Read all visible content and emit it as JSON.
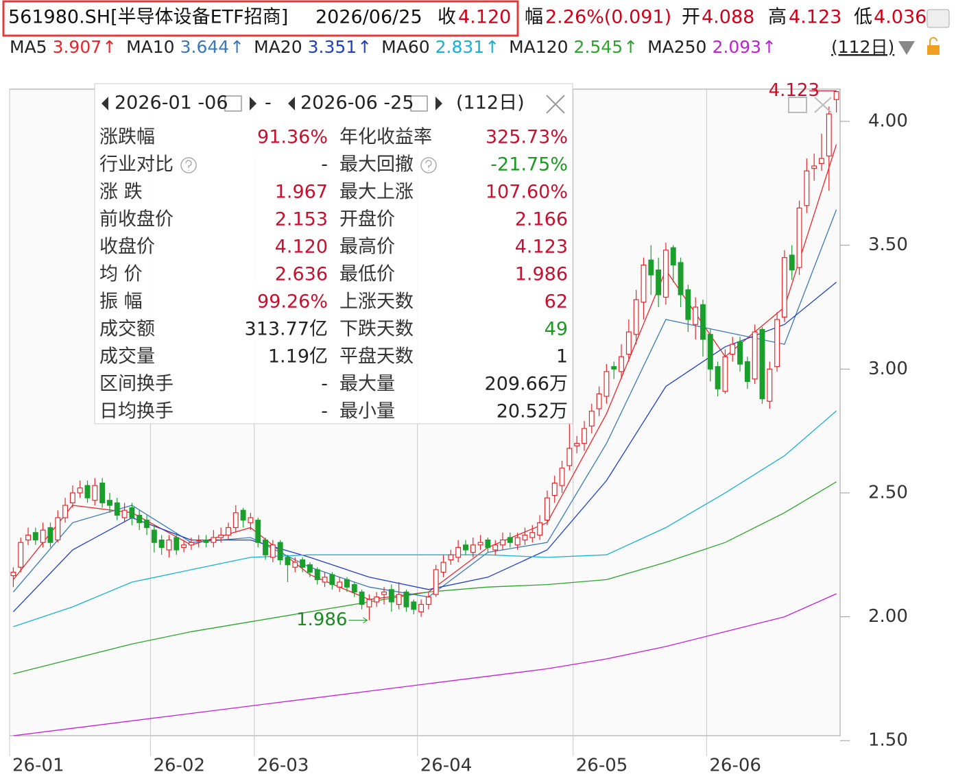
{
  "header": {
    "symbol": "561980.SH[半导体设备ETF招商]",
    "date": "2026/06/25",
    "close_label": "收",
    "close": "4.120",
    "change_label": "幅",
    "change": "2.26%(0.091)",
    "open_label": "开",
    "high_label": "高",
    "low_label": "低"
  },
  "period": "(112日)",
  "chart_data": {
    "type": "candlestick",
    "open": [
      2.166,
      2.2,
      2.31,
      2.34,
      2.3,
      2.36,
      2.31,
      2.4,
      2.46,
      2.5,
      2.53,
      2.47,
      2.54,
      2.47,
      2.46,
      2.4,
      2.44,
      2.41,
      2.39,
      2.35,
      2.31,
      2.27,
      2.32,
      2.28,
      2.29,
      2.31,
      2.31,
      2.3,
      2.32,
      2.33,
      2.36,
      2.43,
      2.38,
      2.39,
      2.31,
      2.24,
      2.3,
      2.24,
      2.2,
      2.23,
      2.21,
      2.19,
      2.14,
      2.17,
      2.12,
      2.15,
      2.13,
      2.1,
      2.04,
      2.06,
      2.09,
      2.11,
      2.05,
      2.1,
      2.06,
      2.02,
      2.05,
      2.09,
      2.18,
      2.23,
      2.24,
      2.29,
      2.26,
      2.29,
      2.31,
      2.27,
      2.29,
      2.32,
      2.29,
      2.31,
      2.32,
      2.33,
      2.39,
      2.49,
      2.53,
      2.61,
      2.69,
      2.7,
      2.77,
      2.84,
      2.89,
      3.01,
      2.99,
      3.06,
      3.14,
      3.27,
      3.44,
      3.4,
      3.29,
      3.49,
      3.43,
      3.32,
      3.18,
      3.26,
      3.14,
      3.01,
      2.91,
      3.06,
      3.11,
      3.03,
      2.96,
      3.16,
      2.87,
      3.01,
      3.21,
      3.46,
      3.41,
      3.66,
      3.81,
      3.83,
      3.86,
      4.088
    ],
    "high": [
      2.2,
      2.32,
      2.36,
      2.36,
      2.38,
      2.38,
      2.43,
      2.48,
      2.53,
      2.55,
      2.55,
      2.56,
      2.56,
      2.5,
      2.48,
      2.46,
      2.46,
      2.43,
      2.41,
      2.37,
      2.33,
      2.33,
      2.34,
      2.31,
      2.32,
      2.33,
      2.33,
      2.35,
      2.36,
      2.38,
      2.45,
      2.44,
      2.42,
      2.4,
      2.32,
      2.31,
      2.31,
      2.25,
      2.24,
      2.24,
      2.22,
      2.2,
      2.18,
      2.18,
      2.16,
      2.16,
      2.14,
      2.11,
      2.09,
      2.1,
      2.12,
      2.13,
      2.14,
      2.11,
      2.07,
      2.07,
      2.1,
      2.21,
      2.25,
      2.27,
      2.31,
      2.31,
      2.32,
      2.33,
      2.32,
      2.31,
      2.34,
      2.34,
      2.34,
      2.36,
      2.37,
      2.41,
      2.51,
      2.57,
      2.63,
      2.84,
      2.73,
      2.79,
      2.86,
      2.93,
      3.02,
      3.03,
      3.1,
      3.2,
      3.32,
      3.45,
      3.5,
      3.45,
      3.51,
      3.5,
      3.45,
      3.34,
      3.29,
      3.28,
      3.16,
      3.03,
      3.08,
      3.13,
      3.13,
      3.05,
      3.18,
      3.17,
      3.03,
      3.23,
      3.48,
      3.5,
      3.68,
      3.85,
      3.87,
      3.95,
      4.06,
      4.123
    ],
    "low": [
      2.12,
      2.18,
      2.29,
      2.29,
      2.28,
      2.28,
      2.3,
      2.38,
      2.44,
      2.48,
      2.46,
      2.45,
      2.44,
      2.42,
      2.39,
      2.38,
      2.37,
      2.35,
      2.33,
      2.26,
      2.25,
      2.24,
      2.25,
      2.26,
      2.27,
      2.28,
      2.28,
      2.28,
      2.3,
      2.31,
      2.34,
      2.36,
      2.35,
      2.28,
      2.23,
      2.22,
      2.21,
      2.14,
      2.18,
      2.18,
      2.16,
      2.13,
      2.12,
      2.11,
      2.1,
      2.1,
      2.08,
      2.03,
      1.986,
      2.04,
      2.05,
      2.02,
      2.03,
      2.02,
      2.01,
      2.0,
      2.03,
      2.08,
      2.16,
      2.21,
      2.22,
      2.25,
      2.24,
      2.27,
      2.26,
      2.25,
      2.27,
      2.28,
      2.27,
      2.29,
      2.3,
      2.31,
      2.37,
      2.46,
      2.5,
      2.59,
      2.66,
      2.67,
      2.74,
      2.81,
      2.86,
      2.96,
      2.96,
      3.03,
      3.1,
      3.2,
      3.3,
      3.25,
      3.26,
      3.35,
      3.25,
      3.15,
      3.12,
      3.05,
      2.95,
      2.89,
      2.9,
      3.03,
      2.99,
      2.92,
      2.94,
      2.86,
      2.84,
      2.99,
      3.19,
      3.36,
      3.38,
      3.63,
      3.76,
      3.8,
      3.72,
      4.036
    ],
    "close": [
      2.18,
      2.3,
      2.33,
      2.31,
      2.35,
      2.3,
      2.4,
      2.45,
      2.5,
      2.52,
      2.48,
      2.53,
      2.46,
      2.45,
      2.41,
      2.43,
      2.4,
      2.38,
      2.36,
      2.3,
      2.28,
      2.31,
      2.27,
      2.29,
      2.3,
      2.31,
      2.3,
      2.32,
      2.33,
      2.36,
      2.42,
      2.39,
      2.4,
      2.3,
      2.25,
      2.29,
      2.23,
      2.21,
      2.22,
      2.2,
      2.18,
      2.15,
      2.16,
      2.13,
      2.14,
      2.12,
      2.1,
      2.05,
      2.07,
      2.08,
      2.1,
      2.06,
      2.09,
      2.04,
      2.03,
      2.05,
      2.08,
      2.19,
      2.22,
      2.25,
      2.28,
      2.27,
      2.29,
      2.3,
      2.28,
      2.29,
      2.31,
      2.3,
      2.32,
      2.33,
      2.34,
      2.38,
      2.48,
      2.54,
      2.6,
      2.68,
      2.7,
      2.76,
      2.83,
      2.9,
      2.99,
      3.0,
      3.05,
      3.15,
      3.28,
      3.42,
      3.38,
      3.3,
      3.48,
      3.42,
      3.3,
      3.2,
      3.25,
      3.12,
      3.0,
      2.92,
      3.05,
      3.1,
      3.02,
      2.95,
      3.15,
      2.88,
      3.0,
      3.2,
      3.45,
      3.4,
      3.65,
      3.8,
      3.82,
      3.85,
      4.03,
      4.12
    ],
    "up_color": "#e8262a",
    "down_color": "#1a9e2c",
    "xlim": [
      0,
      112
    ],
    "xticks": [
      {
        "value": 0,
        "label": "26-01"
      },
      {
        "value": 19,
        "label": "26-02"
      },
      {
        "value": 33,
        "label": "26-03"
      },
      {
        "value": 55,
        "label": "26-04"
      },
      {
        "value": 76,
        "label": "26-05"
      },
      {
        "value": 94,
        "label": "26-06"
      }
    ],
    "ylim": [
      1.52,
      4.13
    ],
    "yticks": [
      {
        "value": 1.5,
        "label": "1.50"
      },
      {
        "value": 2,
        "label": "2.00"
      },
      {
        "value": 2.5,
        "label": "2.50"
      },
      {
        "value": 3,
        "label": "3.00"
      },
      {
        "value": 3.5,
        "label": "3.50"
      },
      {
        "value": 4,
        "label": "4.00"
      }
    ],
    "ma_x": [
      0,
      8,
      16,
      24,
      32,
      40,
      48,
      56,
      64,
      72,
      80,
      88,
      96,
      104,
      111
    ],
    "series": [
      {
        "name": "MA5",
        "color": "#e8262a",
        "trend": "↑",
        "values": [
          2.15,
          2.45,
          2.42,
          2.29,
          2.36,
          2.17,
          2.07,
          2.1,
          2.28,
          2.38,
          2.82,
          3.4,
          3.05,
          3.25,
          3.907
        ]
      },
      {
        "name": "MA10",
        "color": "#3a78b8",
        "trend": "↑",
        "values": [
          2.1,
          2.38,
          2.45,
          2.3,
          2.32,
          2.2,
          2.12,
          2.08,
          2.26,
          2.3,
          2.7,
          3.2,
          3.15,
          3.1,
          3.644
        ]
      },
      {
        "name": "MA20",
        "color": "#1f3fc8",
        "trend": "↑",
        "values": [
          2.02,
          2.27,
          2.4,
          2.31,
          2.31,
          2.24,
          2.16,
          2.11,
          2.16,
          2.27,
          2.55,
          2.93,
          3.09,
          3.18,
          3.351
        ]
      },
      {
        "name": "MA60",
        "color": "#17b1d1",
        "trend": "↑",
        "values": [
          1.96,
          2.04,
          2.14,
          2.19,
          2.24,
          2.25,
          2.25,
          2.25,
          2.25,
          2.24,
          2.25,
          2.36,
          2.5,
          2.65,
          2.831
        ]
      },
      {
        "name": "MA120",
        "color": "#2aa52a",
        "trend": "↑",
        "values": [
          1.77,
          1.83,
          1.89,
          1.94,
          1.98,
          2.02,
          2.06,
          2.1,
          2.12,
          2.13,
          2.15,
          2.22,
          2.3,
          2.42,
          2.545
        ]
      },
      {
        "name": "MA250",
        "color": "#c21fd6",
        "trend": "↑",
        "values": [
          1.52,
          1.55,
          1.58,
          1.61,
          1.64,
          1.67,
          1.7,
          1.73,
          1.76,
          1.79,
          1.83,
          1.88,
          1.94,
          2.0,
          2.093
        ]
      }
    ]
  },
  "panel": {
    "start": "2026-01 -06",
    "separator": "-",
    "end": "2026-06 -25",
    "days": "(112日)",
    "rows": [
      [
        {
          "label": "涨跌幅",
          "value": "91.36%",
          "color": "#c8102e"
        },
        {
          "label": "年化收益率",
          "value": "325.73%",
          "color": "#c8102e"
        }
      ],
      [
        {
          "label": "行业对比",
          "value": "-",
          "color": "#222",
          "help": true
        },
        {
          "label": "最大回撤",
          "value": "-21.75%",
          "color": "#1a9a20",
          "help": true
        }
      ],
      [
        {
          "label": "涨  跌",
          "value": "1.967",
          "color": "#c8102e"
        },
        {
          "label": "最大上涨",
          "value": "107.60%",
          "color": "#c8102e"
        }
      ],
      [
        {
          "label": "前收盘价",
          "value": "2.153",
          "color": "#c8102e"
        },
        {
          "label": "开盘价",
          "value": "2.166",
          "color": "#c8102e"
        }
      ],
      [
        {
          "label": "收盘价",
          "value": "4.120",
          "color": "#c8102e"
        },
        {
          "label": "最高价",
          "value": "4.123",
          "color": "#c8102e"
        }
      ],
      [
        {
          "label": "均  价",
          "value": "2.636",
          "color": "#c8102e"
        },
        {
          "label": "最低价",
          "value": "1.986",
          "color": "#c8102e"
        }
      ],
      [
        {
          "label": "振  幅",
          "value": "99.26%",
          "color": "#c8102e"
        },
        {
          "label": "上涨天数",
          "value": "62",
          "color": "#c8102e"
        }
      ],
      [
        {
          "label": "成交额",
          "value": "313.77亿",
          "color": "#222"
        },
        {
          "label": "下跌天数",
          "value": "49",
          "color": "#1a9a20"
        }
      ],
      [
        {
          "label": "成交量",
          "value": "1.19亿",
          "color": "#222"
        },
        {
          "label": "平盘天数",
          "value": "1",
          "color": "#222"
        }
      ],
      [
        {
          "label": "区间换手",
          "value": "-",
          "color": "#222"
        },
        {
          "label": "最大量",
          "value": "209.66万",
          "color": "#222"
        }
      ],
      [
        {
          "label": "日均换手",
          "value": "-",
          "color": "#222"
        },
        {
          "label": "最小量",
          "value": "20.52万",
          "color": "#222"
        }
      ]
    ]
  }
}
